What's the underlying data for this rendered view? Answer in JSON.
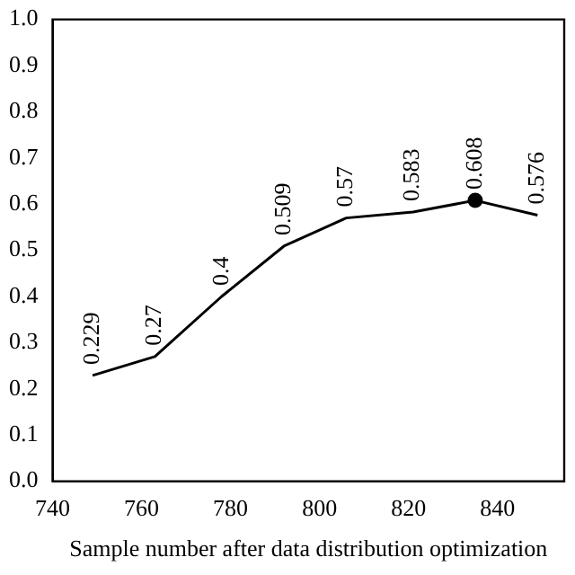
{
  "chart_data": {
    "type": "line",
    "xlabel": "Sample number after data distribution optimization",
    "x": [
      749,
      763,
      778,
      792,
      806,
      821,
      835,
      849
    ],
    "series": [
      {
        "color": "#000000",
        "values": [
          0.229,
          0.27,
          0.4,
          0.509,
          0.57,
          0.583,
          0.608,
          0.576
        ],
        "value_labels": [
          "0.229",
          "0.27",
          "0.4",
          "0.509",
          "0.57",
          "0.583",
          "0.608",
          "0.576"
        ],
        "marker": "none"
      },
      {
        "type": "scatter",
        "color": "#000000",
        "x": [
          835
        ],
        "values": [
          0.608
        ],
        "marker": "circle"
      }
    ],
    "xlim": [
      740,
      855
    ],
    "xticks": [
      740,
      760,
      780,
      800,
      820,
      840
    ],
    "ylim": [
      0,
      1
    ],
    "yticks": [
      {
        "value": 0,
        "label": "0.0"
      },
      0.1,
      0.2,
      0.3,
      0.4,
      0.5,
      0.6,
      0.7,
      0.8,
      0.9,
      {
        "value": 1,
        "label": "1.0"
      }
    ],
    "grid": false,
    "legend": false
  }
}
